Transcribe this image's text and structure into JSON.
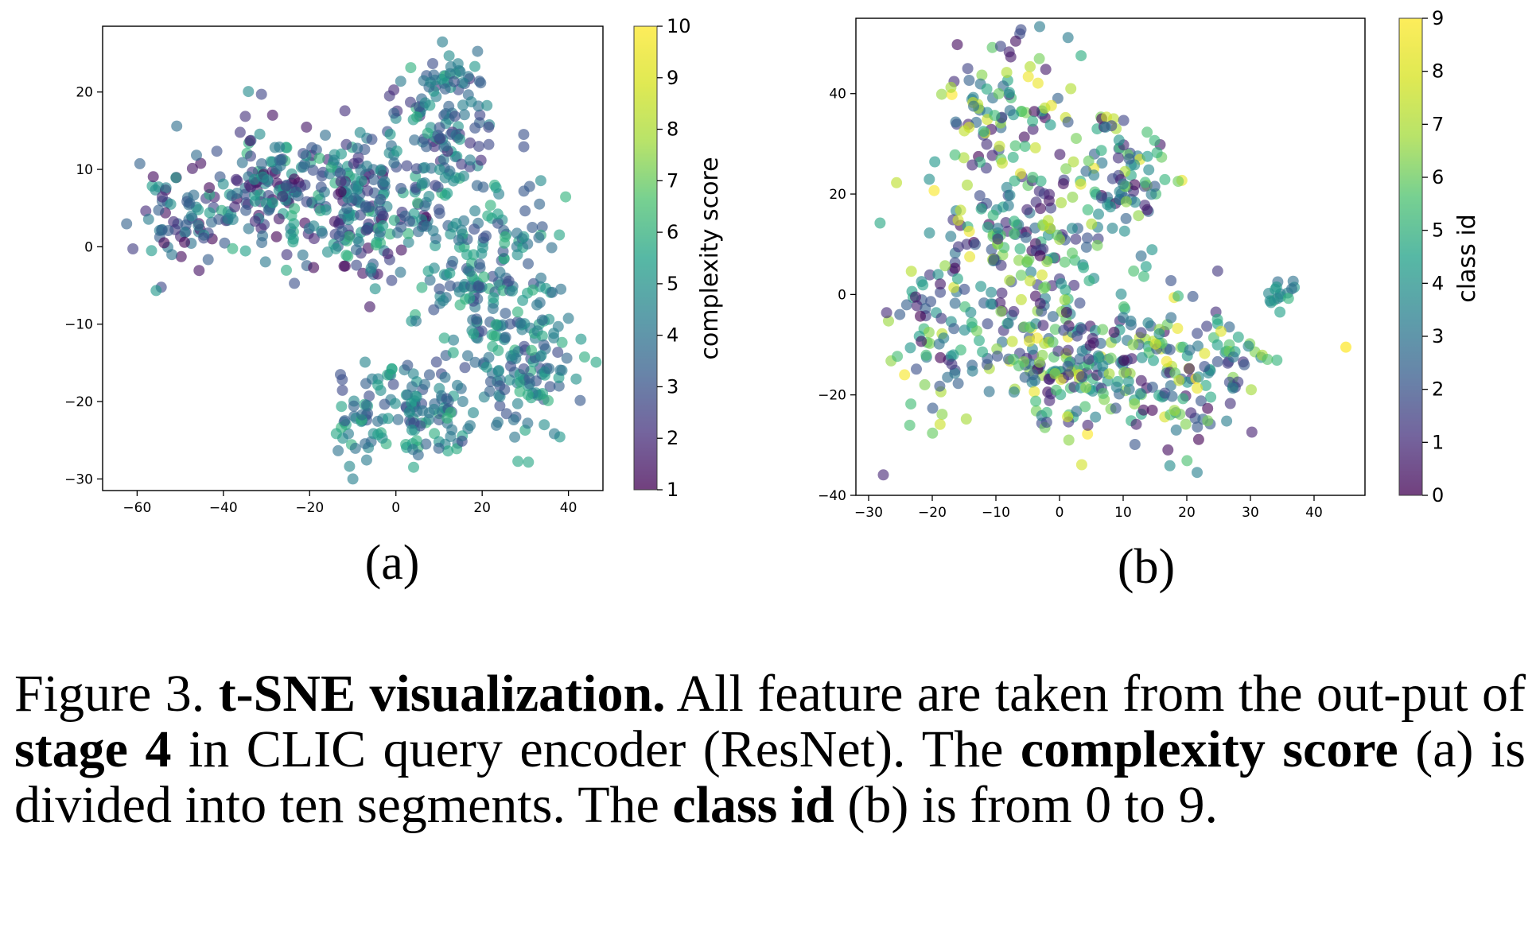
{
  "chart_data": [
    {
      "type": "scatter",
      "subplot_label": "(a)",
      "xlim": [
        -68,
        48
      ],
      "ylim": [
        -31.5,
        28.5
      ],
      "xticks": [
        -60,
        -40,
        -20,
        0,
        20,
        40
      ],
      "yticks": [
        -30,
        -20,
        -10,
        0,
        10,
        20
      ],
      "xtick_labels": [
        "−60",
        "−40",
        "−20",
        "0",
        "20",
        "40"
      ],
      "ytick_labels": [
        "−30",
        "−20",
        "−10",
        "0",
        "10",
        "20"
      ],
      "colorbar": {
        "label": "complexity score",
        "range": [
          1,
          10
        ],
        "ticks": [
          "1",
          "2",
          "3",
          "4",
          "5",
          "6",
          "7",
          "8",
          "9",
          "10"
        ],
        "colormap": "viridis"
      },
      "clusters": [
        {
          "cx": -50,
          "cy": 3,
          "sx": 7,
          "sy": 3.5,
          "n": 70,
          "c": [
            1,
            6
          ]
        },
        {
          "cx": -30,
          "cy": 8,
          "sx": 8,
          "sy": 5,
          "n": 140,
          "c": [
            1,
            7
          ]
        },
        {
          "cx": -8,
          "cy": 5,
          "sx": 9,
          "sy": 6,
          "n": 200,
          "c": [
            1,
            7
          ]
        },
        {
          "cx": 10,
          "cy": 13,
          "sx": 7,
          "sy": 6,
          "n": 130,
          "c": [
            2,
            7
          ]
        },
        {
          "cx": 20,
          "cy": -3,
          "sx": 9,
          "sy": 7,
          "n": 160,
          "c": [
            3,
            7
          ]
        },
        {
          "cx": 30,
          "cy": -15,
          "sx": 7,
          "sy": 6,
          "n": 120,
          "c": [
            3,
            7
          ]
        },
        {
          "cx": 5,
          "cy": -21,
          "sx": 9,
          "sy": 3.5,
          "n": 110,
          "c": [
            3,
            7
          ]
        },
        {
          "cx": -9,
          "cy": -24,
          "sx": 4,
          "sy": 3,
          "n": 30,
          "c": [
            3,
            7
          ]
        },
        {
          "cx": 14,
          "cy": 22,
          "sx": 4,
          "sy": 2,
          "n": 20,
          "c": [
            3,
            6
          ]
        }
      ]
    },
    {
      "type": "scatter",
      "subplot_label": "(b)",
      "xlim": [
        -32,
        48
      ],
      "ylim": [
        -40,
        55
      ],
      "xticks": [
        -30,
        -20,
        -10,
        0,
        10,
        20,
        30,
        40
      ],
      "yticks": [
        -40,
        -20,
        0,
        20,
        40
      ],
      "xtick_labels": [
        "−30",
        "−20",
        "−10",
        "0",
        "10",
        "20",
        "30",
        "40"
      ],
      "ytick_labels": [
        "−40",
        "−20",
        "0",
        "20",
        "40"
      ],
      "colorbar": {
        "label": "class id",
        "range": [
          0,
          9
        ],
        "ticks": [
          "0",
          "1",
          "2",
          "3",
          "4",
          "5",
          "6",
          "7",
          "8",
          "9"
        ],
        "colormap": "viridis"
      },
      "clusters": [
        {
          "cx": -8,
          "cy": 38,
          "sx": 6,
          "sy": 7,
          "n": 90,
          "c": [
            0,
            9
          ]
        },
        {
          "cx": -5,
          "cy": 12,
          "sx": 9,
          "sy": 9,
          "n": 160,
          "c": [
            0,
            9
          ]
        },
        {
          "cx": 2,
          "cy": -12,
          "sx": 10,
          "sy": 10,
          "n": 240,
          "c": [
            0,
            9
          ]
        },
        {
          "cx": 10,
          "cy": 25,
          "sx": 5,
          "sy": 7,
          "n": 80,
          "c": [
            0,
            9
          ]
        },
        {
          "cx": 20,
          "cy": -15,
          "sx": 7,
          "sy": 8,
          "n": 110,
          "c": [
            0,
            9
          ]
        },
        {
          "cx": -20,
          "cy": -8,
          "sx": 4,
          "sy": 10,
          "n": 60,
          "c": [
            0,
            9
          ]
        },
        {
          "cx": 35,
          "cy": 0,
          "sx": 2,
          "sy": 1.8,
          "n": 16,
          "c": [
            3,
            6
          ]
        },
        {
          "cx": 31,
          "cy": -12,
          "sx": 1.5,
          "sy": 1.5,
          "n": 6,
          "c": [
            3,
            9
          ]
        }
      ],
      "extra_points": [
        {
          "x": 45,
          "y": -10.5,
          "c": 9
        }
      ]
    }
  ],
  "caption": {
    "figure_label": "Figure 3.",
    "title": "t-SNE visualization.",
    "text_1": "All feature are taken from the out-put of",
    "bold_1": "stage 4",
    "text_2": "in CLIC query encoder (ResNet). The",
    "bold_2": "complexity score",
    "text_3": "(a) is divided into ten segments. The",
    "bold_3": "class id",
    "text_4": "(b) is from 0 to 9."
  }
}
